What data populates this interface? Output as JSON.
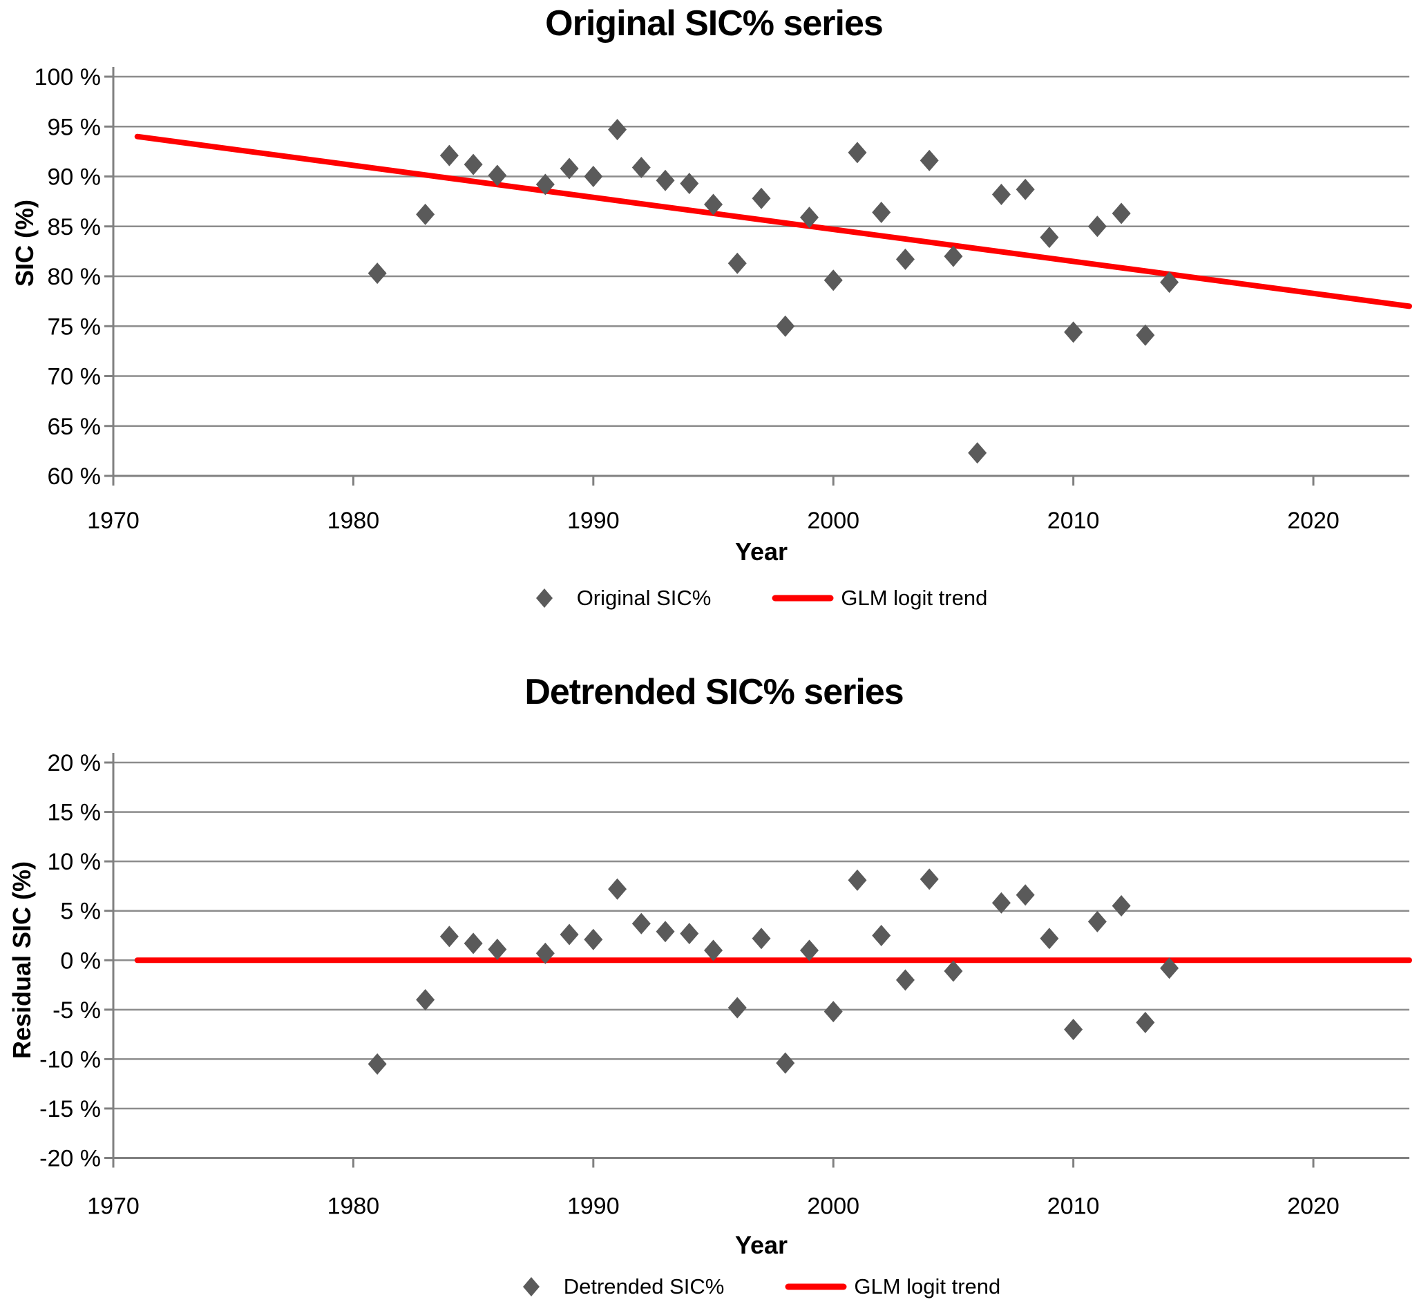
{
  "colors": {
    "marker": "#5a5a5a",
    "trend": "#ff0000",
    "gridline": "#8c8c8c",
    "axis": "#808080",
    "text": "#000000"
  },
  "chart_data": [
    {
      "type": "scatter",
      "title": "Original SIC% series",
      "xlabel": "Year",
      "ylabel": "SIC (%)",
      "xlim": [
        1970,
        2024
      ],
      "ylim": [
        60,
        100
      ],
      "grid": true,
      "legend_position": "bottom",
      "x_ticks": [
        1970,
        1980,
        1990,
        2000,
        2010,
        2020
      ],
      "x_tick_labels": [
        "1970",
        "1980",
        "1990",
        "2000",
        "2010",
        "2020"
      ],
      "y_ticks": [
        100,
        95,
        90,
        85,
        80,
        75,
        70,
        65,
        60
      ],
      "y_tick_labels": [
        "100 %",
        "95 %",
        "90 %",
        "85 %",
        "80 %",
        "75 %",
        "70 %",
        "65 %",
        "60 %"
      ],
      "legend": [
        {
          "marker": "diamond",
          "label": "Original SIC%"
        },
        {
          "marker": "line",
          "label": "GLM logit trend"
        }
      ],
      "series": [
        {
          "name": "Original SIC%",
          "marker": "diamond",
          "points": [
            [
              1981,
              80.3
            ],
            [
              1983,
              86.2
            ],
            [
              1984,
              92.1
            ],
            [
              1985,
              91.2
            ],
            [
              1986,
              90.1
            ],
            [
              1988,
              89.2
            ],
            [
              1989,
              90.8
            ],
            [
              1990,
              90.0
            ],
            [
              1991,
              94.7
            ],
            [
              1992,
              90.9
            ],
            [
              1993,
              89.6
            ],
            [
              1994,
              89.3
            ],
            [
              1995,
              87.2
            ],
            [
              1996,
              81.3
            ],
            [
              1997,
              87.8
            ],
            [
              1998,
              75.0
            ],
            [
              1999,
              85.9
            ],
            [
              2000,
              79.6
            ],
            [
              2001,
              92.4
            ],
            [
              2002,
              86.4
            ],
            [
              2003,
              81.7
            ],
            [
              2004,
              91.6
            ],
            [
              2005,
              82.0
            ],
            [
              2006,
              62.3
            ],
            [
              2007,
              88.2
            ],
            [
              2008,
              88.7
            ],
            [
              2009,
              83.9
            ],
            [
              2010,
              74.4
            ],
            [
              2011,
              85.0
            ],
            [
              2012,
              86.3
            ],
            [
              2013,
              74.1
            ],
            [
              2014,
              79.4
            ]
          ]
        }
      ],
      "trend": {
        "name": "GLM logit trend",
        "points": [
          [
            1971,
            94.0
          ],
          [
            2024,
            77.0
          ]
        ]
      }
    },
    {
      "type": "scatter",
      "title": "Detrended SIC% series",
      "xlabel": "Year",
      "ylabel": "Residual SIC (%)",
      "xlim": [
        1970,
        2024
      ],
      "ylim": [
        -20,
        20
      ],
      "grid": true,
      "legend_position": "bottom",
      "x_ticks": [
        1970,
        1980,
        1990,
        2000,
        2010,
        2020
      ],
      "x_tick_labels": [
        "1970",
        "1980",
        "1990",
        "2000",
        "2010",
        "2020"
      ],
      "y_ticks": [
        20,
        15,
        10,
        5,
        0,
        -5,
        -10,
        -15,
        -20
      ],
      "y_tick_labels": [
        "20 %",
        "15 %",
        "10 %",
        "5 %",
        "0 %",
        "-5 %",
        "-10 %",
        "-15 %",
        "-20 %"
      ],
      "legend": [
        {
          "marker": "diamond",
          "label": "Detrended SIC%"
        },
        {
          "marker": "line",
          "label": "GLM logit trend"
        }
      ],
      "series": [
        {
          "name": "Detrended SIC%",
          "marker": "diamond",
          "points": [
            [
              1981,
              -10.5
            ],
            [
              1983,
              -4.0
            ],
            [
              1984,
              2.4
            ],
            [
              1985,
              1.7
            ],
            [
              1986,
              1.1
            ],
            [
              1988,
              0.7
            ],
            [
              1989,
              2.6
            ],
            [
              1990,
              2.1
            ],
            [
              1991,
              7.2
            ],
            [
              1992,
              3.7
            ],
            [
              1993,
              2.9
            ],
            [
              1994,
              2.7
            ],
            [
              1995,
              1.0
            ],
            [
              1996,
              -4.8
            ],
            [
              1997,
              2.2
            ],
            [
              1998,
              -10.4
            ],
            [
              1999,
              1.0
            ],
            [
              2000,
              -5.2
            ],
            [
              2001,
              8.1
            ],
            [
              2002,
              2.5
            ],
            [
              2003,
              -2.0
            ],
            [
              2004,
              8.2
            ],
            [
              2005,
              -1.1
            ],
            [
              2007,
              5.8
            ],
            [
              2008,
              6.6
            ],
            [
              2009,
              2.2
            ],
            [
              2010,
              -7.0
            ],
            [
              2011,
              3.9
            ],
            [
              2012,
              5.5
            ],
            [
              2013,
              -6.3
            ],
            [
              2014,
              -0.8
            ]
          ]
        }
      ],
      "trend": {
        "name": "GLM logit trend",
        "points": [
          [
            1971,
            0.0
          ],
          [
            2024,
            0.0
          ]
        ]
      }
    }
  ]
}
